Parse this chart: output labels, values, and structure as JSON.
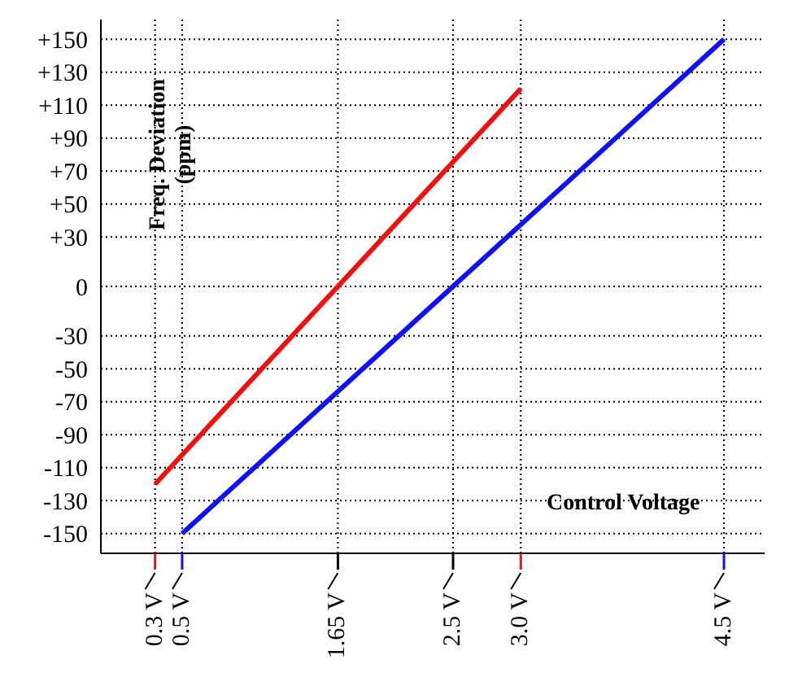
{
  "chart_data": {
    "type": "line",
    "xlabel": "Control Voltage",
    "ylabel": "Freq. Deviation (ppm)",
    "series": [
      {
        "color": "#ee1111",
        "x": [
          0.3,
          3.0
        ],
        "values": [
          -120,
          120
        ]
      },
      {
        "color": "#1111ee",
        "x": [
          0.5,
          4.5
        ],
        "values": [
          -150,
          150
        ]
      }
    ],
    "xlim": [
      -0.1,
      4.8
    ],
    "xticks": [
      {
        "value": 0.3,
        "label": "0.3 V"
      },
      {
        "value": 0.5,
        "label": "0.5 V"
      },
      {
        "value": 1.65,
        "label": "1.65 V"
      },
      {
        "value": 2.5,
        "label": "2.5 V"
      },
      {
        "value": 3.0,
        "label": "3.0 V"
      },
      {
        "value": 4.5,
        "label": "4.5 V"
      }
    ],
    "ylim": [
      -162,
      162
    ],
    "yticks": [
      {
        "value": 150,
        "label": "+150"
      },
      {
        "value": 130,
        "label": "+130"
      },
      {
        "value": 110,
        "label": "+110"
      },
      {
        "value": 90,
        "label": "+90"
      },
      {
        "value": 70,
        "label": "+70"
      },
      {
        "value": 50,
        "label": "+50"
      },
      {
        "value": 30,
        "label": "+30"
      },
      0,
      -30,
      -50,
      -70,
      -90,
      -110,
      -130,
      -150
    ],
    "grid": true,
    "legend": false,
    "marker": "none",
    "line_style": "solid"
  }
}
